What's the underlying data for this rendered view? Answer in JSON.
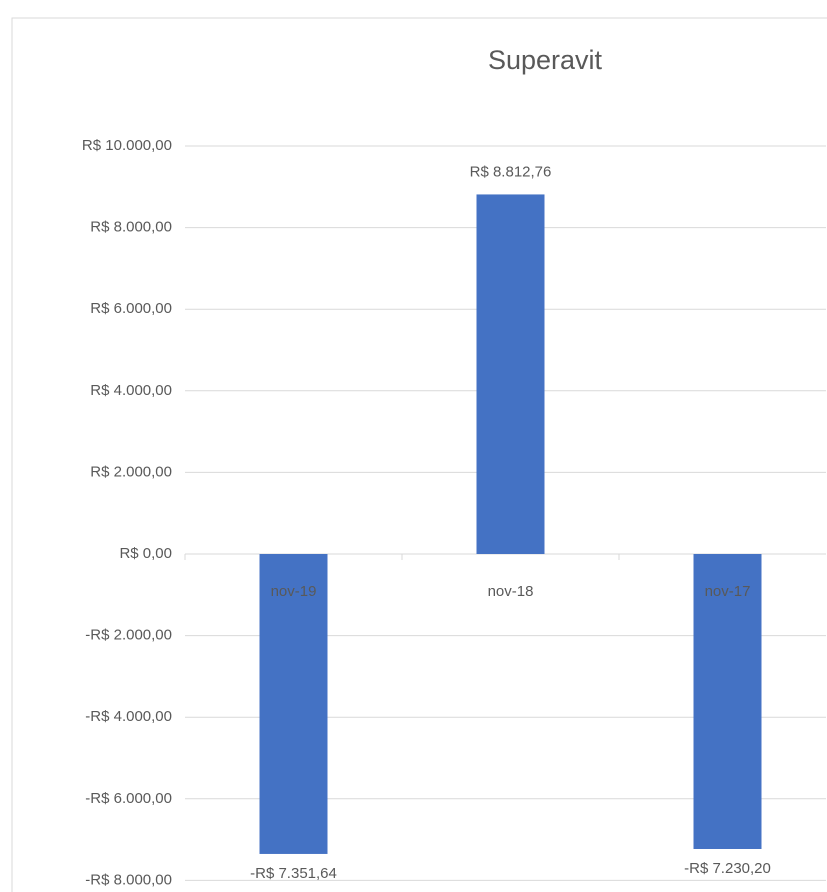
{
  "chart_data": {
    "type": "bar",
    "title": "Superavit",
    "categories": [
      "nov-19",
      "nov-18",
      "nov-17"
    ],
    "values": [
      -7351.64,
      8812.76,
      -7230.2
    ],
    "value_labels": [
      "-R$ 7.351,64",
      "R$ 8.812,76",
      "-R$ 7.230,20"
    ],
    "color": "#4472c4",
    "ylim": [
      -8000,
      10000
    ],
    "yticks": [
      {
        "value": 10000,
        "label": "R$ 10.000,00"
      },
      {
        "value": 8000,
        "label": "R$ 8.000,00"
      },
      {
        "value": 6000,
        "label": "R$ 6.000,00"
      },
      {
        "value": 4000,
        "label": "R$ 4.000,00"
      },
      {
        "value": 2000,
        "label": "R$ 2.000,00"
      },
      {
        "value": 0,
        "label": "R$ 0,00"
      },
      {
        "value": -2000,
        "label": "-R$ 2.000,00"
      },
      {
        "value": -4000,
        "label": "-R$ 4.000,00"
      },
      {
        "value": -6000,
        "label": "-R$ 6.000,00"
      },
      {
        "value": -8000,
        "label": "-R$ 8.000,00"
      }
    ],
    "grid": true
  }
}
